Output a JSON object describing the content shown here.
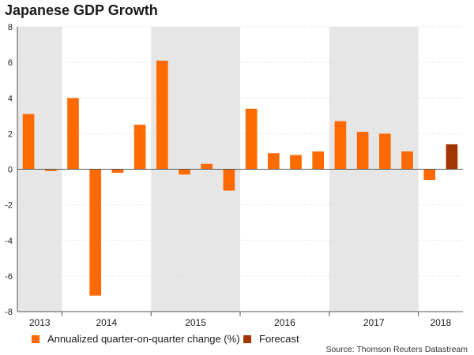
{
  "chart_data": {
    "type": "bar",
    "title": "Japanese GDP Growth",
    "source": "Source: Thomson Reuters Datastream",
    "ylim": [
      -8,
      8
    ],
    "yticks": [
      "-8",
      "-6",
      "-4",
      "-2",
      "0",
      "2",
      "4",
      "6",
      "8"
    ],
    "grid": true,
    "legend_placement": "bottom-left",
    "year_labels": [
      "2013",
      "2014",
      "2015",
      "2016",
      "2017",
      "2018"
    ],
    "year_quarter_counts": [
      2,
      4,
      4,
      4,
      4,
      2
    ],
    "shaded_years": [
      "2013",
      "2015",
      "2017"
    ],
    "colors": {
      "actual": "#ff6a00",
      "forecast": "#a33500",
      "shade": "#e6e6e6"
    },
    "series": [
      {
        "name": "Annualized quarter-on-quarter change (%)",
        "values": [
          3.1,
          -0.1,
          4.0,
          -7.1,
          -0.2,
          2.5,
          6.1,
          -0.3,
          0.3,
          -1.2,
          3.4,
          0.9,
          0.8,
          1.0,
          2.7,
          2.1,
          2.0,
          1.0,
          -0.6,
          null
        ]
      },
      {
        "name": "Forecast",
        "values": [
          null,
          null,
          null,
          null,
          null,
          null,
          null,
          null,
          null,
          null,
          null,
          null,
          null,
          null,
          null,
          null,
          null,
          null,
          null,
          1.4
        ]
      }
    ]
  }
}
